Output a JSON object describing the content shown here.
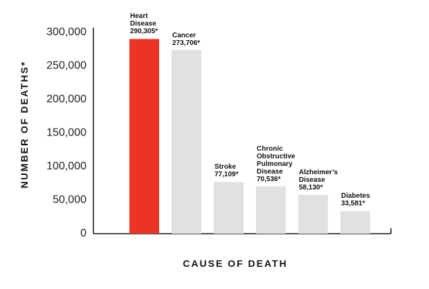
{
  "chart_data": {
    "type": "bar",
    "x_label": "CAUSE OF DEATH",
    "y_label": "NUMBER OF DEATHS*",
    "categories": [
      "Heart Disease",
      "Cancer",
      "Stroke",
      "Chronic Obstructive Pulmonary Disease",
      "Alzheimer’s Disease",
      "Diabetes"
    ],
    "values": [
      290305,
      273706,
      77109,
      70536,
      58130,
      33581
    ],
    "value_labels": [
      "290,305*",
      "273,706*",
      "77,109*",
      "70,536*",
      "58,130*",
      "33,581*"
    ],
    "colors": [
      "#ec3426",
      "#e1e1e1",
      "#e1e1e1",
      "#e1e1e1",
      "#e1e1e1",
      "#e1e1e1"
    ],
    "ylim": [
      0,
      300000
    ],
    "yticks": [
      0,
      {
        "value": 50000,
        "label": "50,000"
      },
      {
        "value": 100000,
        "label": "100,000"
      },
      {
        "value": 150000,
        "label": "150,000"
      },
      {
        "value": 200000,
        "label": "200,000"
      },
      {
        "value": 250000,
        "label": "250,000"
      },
      {
        "value": 300000,
        "label": "300,000"
      }
    ],
    "grid": false
  }
}
